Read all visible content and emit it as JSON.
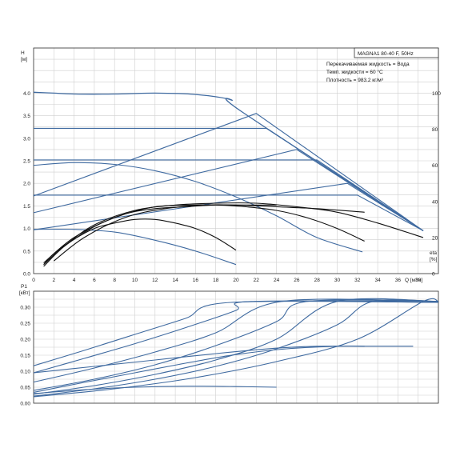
{
  "title": "MAGNA1 80-40 F, 50Hz",
  "info": [
    "Перекачиваемая жидкость = Вода",
    "Темп. жидкости = 60 °C",
    "Плотность = 983.2 кг/м³"
  ],
  "colors": {
    "curve": "#3f6aa0",
    "efficiency": "#111111",
    "grid": "#cfcfcf"
  },
  "chart_data": [
    {
      "type": "line",
      "name": "qh",
      "xlabel": "Q [м³/ч]",
      "ylabel": "H\n[м]",
      "y2label": "eta\n[%]",
      "xlim": [
        0,
        40
      ],
      "ylim": [
        0,
        5
      ],
      "y2lim": [
        0,
        125
      ],
      "xticks": [
        0,
        2,
        4,
        6,
        8,
        10,
        12,
        14,
        16,
        18,
        20,
        22,
        24,
        26,
        28,
        30,
        32,
        34,
        36,
        38
      ],
      "yticks": [
        0.0,
        0.5,
        1.0,
        1.5,
        2.0,
        2.5,
        3.0,
        3.5,
        4.0
      ],
      "y2ticks": [
        0,
        20,
        40,
        60,
        80,
        100
      ],
      "grid": true,
      "head_curves": [
        {
          "x": [
            0,
            2,
            4,
            8,
            12,
            16,
            19.5,
            20.5,
            38.5
          ],
          "y": [
            4.02,
            4.0,
            3.98,
            3.98,
            4.0,
            3.97,
            3.85,
            3.6,
            0.95
          ]
        },
        {
          "x": [
            0,
            23,
            38.5
          ],
          "y": [
            3.22,
            3.22,
            0.95
          ]
        },
        {
          "x": [
            0,
            28,
            38.5
          ],
          "y": [
            2.52,
            2.52,
            0.95
          ]
        },
        {
          "x": [
            0,
            32,
            38.5
          ],
          "y": [
            1.74,
            1.74,
            0.95
          ]
        },
        {
          "x": [
            0,
            22,
            38.5
          ],
          "y": [
            1.72,
            3.55,
            0.95
          ]
        },
        {
          "x": [
            0,
            26,
            38.5
          ],
          "y": [
            1.35,
            2.75,
            0.95
          ]
        },
        {
          "x": [
            0,
            31,
            38.5
          ],
          "y": [
            0.97,
            2.0,
            0.95
          ]
        },
        {
          "x": [
            0,
            4,
            8,
            12,
            16,
            20,
            24,
            28,
            32.5
          ],
          "y": [
            2.4,
            2.46,
            2.42,
            2.28,
            2.04,
            1.7,
            1.28,
            0.8,
            0.48
          ]
        },
        {
          "x": [
            0,
            4,
            8,
            12,
            16,
            20
          ],
          "y": [
            0.98,
            0.98,
            0.92,
            0.74,
            0.5,
            0.2
          ]
        }
      ],
      "efficiency_curves": [
        {
          "x": [
            1,
            2,
            4,
            6,
            8,
            10,
            12,
            14,
            16,
            18,
            20
          ],
          "y": [
            5,
            11,
            19,
            25,
            28,
            30,
            30,
            28,
            25,
            20,
            13
          ]
        },
        {
          "x": [
            1,
            3,
            6,
            9,
            12,
            15,
            18,
            21,
            24,
            27,
            30,
            32.7
          ],
          "y": [
            5,
            15,
            26,
            33,
            36,
            37,
            38,
            37,
            35,
            31,
            25,
            18
          ]
        },
        {
          "x": [
            1,
            4,
            8,
            12,
            16,
            20,
            24,
            28,
            32.7
          ],
          "y": [
            6,
            20,
            31,
            37,
            38,
            38,
            37,
            36,
            34
          ]
        },
        {
          "x": [
            1,
            3,
            6,
            10,
            14,
            18,
            22,
            26,
            30,
            34,
            38.5
          ],
          "y": [
            4,
            15,
            27,
            35,
            38,
            39,
            39,
            37,
            34,
            28,
            20
          ]
        },
        {
          "x": [
            2,
            5,
            9,
            13,
            17,
            20.5,
            24
          ],
          "y": [
            7,
            20,
            31,
            36,
            38,
            38,
            38
          ]
        }
      ]
    },
    {
      "type": "line",
      "name": "p1",
      "ylabel": "P1\n[кВт]",
      "xlim": [
        0,
        40
      ],
      "ylim": [
        0,
        0.35
      ],
      "yticks": [
        0.0,
        0.05,
        0.1,
        0.15,
        0.2,
        0.25,
        0.3
      ],
      "grid": true,
      "power_curves": [
        {
          "x": [
            0,
            5,
            10,
            15,
            19.5,
            40
          ],
          "y": [
            0.117,
            0.165,
            0.215,
            0.265,
            0.315,
            0.315
          ]
        },
        {
          "x": [
            0,
            5,
            10,
            15,
            20,
            21.5,
            40
          ],
          "y": [
            0.095,
            0.14,
            0.186,
            0.236,
            0.29,
            0.318,
            0.318
          ]
        },
        {
          "x": [
            0,
            6,
            12,
            18,
            24.5,
            40
          ],
          "y": [
            0.066,
            0.11,
            0.16,
            0.22,
            0.318,
            0.318
          ]
        },
        {
          "x": [
            0,
            6,
            12,
            18,
            24,
            27,
            40
          ],
          "y": [
            0.04,
            0.075,
            0.12,
            0.18,
            0.255,
            0.318,
            0.318
          ]
        },
        {
          "x": [
            0,
            6,
            12,
            18,
            24,
            30,
            40
          ],
          "y": [
            0.028,
            0.055,
            0.09,
            0.135,
            0.2,
            0.318,
            0.318
          ]
        },
        {
          "x": [
            0,
            6,
            12,
            18,
            24,
            30,
            33.5,
            40
          ],
          "y": [
            0.022,
            0.045,
            0.075,
            0.115,
            0.17,
            0.245,
            0.318,
            0.318
          ]
        },
        {
          "x": [
            0,
            8,
            16,
            24,
            32,
            38.5,
            40
          ],
          "y": [
            0.02,
            0.045,
            0.08,
            0.13,
            0.2,
            0.318,
            0.318
          ]
        },
        {
          "x": [
            0,
            5,
            10,
            15,
            20,
            25,
            30,
            33,
            36,
            37.5
          ],
          "y": [
            0.034,
            0.065,
            0.095,
            0.125,
            0.152,
            0.17,
            0.178,
            0.178,
            0.178,
            0.178
          ]
        },
        {
          "x": [
            0,
            6,
            12,
            18,
            24,
            28,
            32.7
          ],
          "y": [
            0.095,
            0.115,
            0.135,
            0.155,
            0.172,
            0.178,
            0.178
          ]
        },
        {
          "x": [
            0,
            5,
            10,
            15,
            20,
            24
          ],
          "y": [
            0.03,
            0.042,
            0.05,
            0.053,
            0.052,
            0.05
          ]
        }
      ]
    }
  ]
}
